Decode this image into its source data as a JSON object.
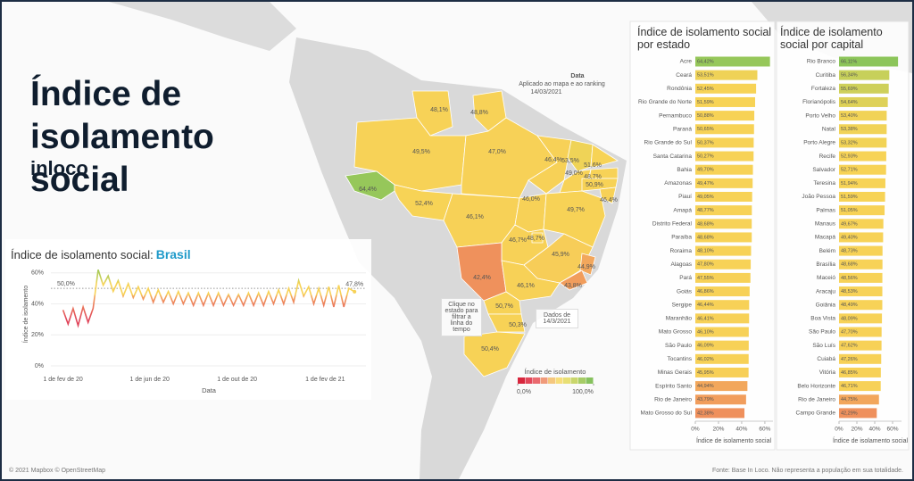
{
  "header": {
    "title": "Índice de isolamento social",
    "subtitle": "inloco"
  },
  "color_scale": {
    "domain": [
      30,
      42,
      45,
      46,
      53,
      56,
      66
    ],
    "colors": [
      "#e0455a",
      "#ef8d5c",
      "#f2a85c",
      "#f7d157",
      "#f7d356",
      "#c9d05a",
      "#8cc55a"
    ]
  },
  "chart_data": [
    {
      "type": "line",
      "title": "Índice de isolamento social:",
      "title_highlight": "Brasil",
      "x": [
        "2020-02-01",
        "2020-02-08",
        "2020-02-15",
        "2020-02-22",
        "2020-02-29",
        "2020-03-07",
        "2020-03-14",
        "2020-03-21",
        "2020-03-28",
        "2020-04-04",
        "2020-04-11",
        "2020-04-18",
        "2020-04-25",
        "2020-05-02",
        "2020-05-09",
        "2020-05-16",
        "2020-05-23",
        "2020-05-30",
        "2020-06-06",
        "2020-06-13",
        "2020-06-20",
        "2020-06-27",
        "2020-07-04",
        "2020-07-11",
        "2020-07-18",
        "2020-07-25",
        "2020-08-01",
        "2020-08-08",
        "2020-08-15",
        "2020-08-22",
        "2020-08-29",
        "2020-09-05",
        "2020-09-12",
        "2020-09-19",
        "2020-09-26",
        "2020-10-03",
        "2020-10-10",
        "2020-10-17",
        "2020-10-24",
        "2020-10-31",
        "2020-11-07",
        "2020-11-14",
        "2020-11-21",
        "2020-11-28",
        "2020-12-05",
        "2020-12-12",
        "2020-12-19",
        "2020-12-26",
        "2021-01-02",
        "2021-01-09",
        "2021-01-16",
        "2021-01-23",
        "2021-01-30",
        "2021-02-06",
        "2021-02-13",
        "2021-02-20",
        "2021-02-27",
        "2021-03-06",
        "2021-03-14"
      ],
      "values": [
        36,
        27,
        37,
        26,
        38,
        28,
        37,
        62,
        52,
        58,
        48,
        55,
        45,
        53,
        44,
        51,
        43,
        50,
        41,
        49,
        41,
        48,
        40,
        48,
        40,
        47,
        39,
        47,
        39,
        47,
        39,
        47,
        39,
        46,
        39,
        46,
        39,
        47,
        39,
        47,
        39,
        48,
        40,
        49,
        40,
        50,
        41,
        55,
        45,
        51,
        40,
        50,
        39,
        51,
        38,
        52,
        38,
        50,
        47.8
      ],
      "value_labels": [
        null,
        null,
        null,
        null,
        null,
        null,
        null,
        null,
        null,
        null,
        null,
        null,
        null,
        null,
        null,
        null,
        null,
        null,
        null,
        null,
        null,
        null,
        null,
        null,
        null,
        null,
        null,
        null,
        null,
        null,
        null,
        null,
        null,
        null,
        null,
        null,
        null,
        null,
        null,
        null,
        null,
        null,
        null,
        null,
        null,
        null,
        null,
        null,
        null,
        null,
        null,
        null,
        null,
        null,
        null,
        null,
        null,
        null,
        "47,8%"
      ],
      "xlim": [
        "2020-01-15",
        "2021-03-20"
      ],
      "xticks": [
        {
          "value": "2020-02-01",
          "label": "1 de fev de 20"
        },
        {
          "value": "2020-06-01",
          "label": "1 de jun de 20"
        },
        {
          "value": "2020-10-01",
          "label": "1 de out de 20"
        },
        {
          "value": "2021-02-01",
          "label": "1 de fev de 21"
        }
      ],
      "ylim": [
        0,
        65
      ],
      "yticks": [
        {
          "value": 0,
          "label": "0%"
        },
        {
          "value": 20,
          "label": "20%"
        },
        {
          "value": 40,
          "label": "40%"
        },
        {
          "value": 60,
          "label": "60%"
        }
      ],
      "grid": true,
      "x_label": "Data",
      "y_label": "Índice de isolamento",
      "reference": {
        "value": 50,
        "label": "50,0%"
      }
    },
    {
      "type": "hbar",
      "title": "Índice de isolamento social por estado",
      "categories": [
        "Acre",
        "Ceará",
        "Rondônia",
        "Rio Grande do Norte",
        "Pernambuco",
        "Paraná",
        "Rio Grande do Sul",
        "Santa Catarina",
        "Bahia",
        "Amazonas",
        "Piauí",
        "Amapá",
        "Distrito Federal",
        "Paraíba",
        "Roraima",
        "Alagoas",
        "Pará",
        "Goiás",
        "Sergipe",
        "Maranhão",
        "Mato Grosso",
        "São Paulo",
        "Tocantins",
        "Minas Gerais",
        "Espírito Santo",
        "Rio de Janeiro",
        "Mato Grosso do Sul"
      ],
      "values": [
        64.42,
        53.51,
        52.45,
        51.59,
        50.88,
        50.65,
        50.37,
        50.27,
        49.7,
        49.47,
        49.05,
        48.77,
        48.68,
        48.68,
        48.1,
        47.8,
        47.55,
        46.86,
        46.44,
        46.41,
        46.1,
        46.09,
        46.02,
        45.95,
        44.94,
        43.79,
        42.38
      ],
      "value_labels": [
        "64,42%",
        "53,51%",
        "52,45%",
        "51,59%",
        "50,88%",
        "50,65%",
        "50,37%",
        "50,27%",
        "49,70%",
        "49,47%",
        "49,05%",
        "48,77%",
        "48,68%",
        "48,68%",
        "48,10%",
        "47,80%",
        "47,55%",
        "46,86%",
        "46,44%",
        "46,41%",
        "46,10%",
        "46,09%",
        "46,02%",
        "45,95%",
        "44,94%",
        "43,79%",
        "42,38%"
      ],
      "xlim": [
        0,
        67
      ],
      "xticks": [
        {
          "value": 0,
          "label": "0%"
        },
        {
          "value": 20,
          "label": "20%"
        },
        {
          "value": 40,
          "label": "40%"
        },
        {
          "value": 60,
          "label": "60%"
        }
      ],
      "x_label": "Índice de isolamento social"
    },
    {
      "type": "hbar",
      "title": "Índice de isolamento social por capital",
      "categories": [
        "Rio Branco",
        "Curitiba",
        "Fortaleza",
        "Florianópolis",
        "Porto Velho",
        "Natal",
        "Porto Alegre",
        "Recife",
        "Salvador",
        "Teresina",
        "João Pessoa",
        "Palmas",
        "Manaus",
        "Macapá",
        "Belém",
        "Brasília",
        "Maceió",
        "Aracaju",
        "Goiânia",
        "Boa Vista",
        "São Paulo",
        "São Luís",
        "Cuiabá",
        "Vitória",
        "Belo Horizonte",
        "Rio de Janeiro",
        "Campo Grande"
      ],
      "values": [
        66.11,
        56.34,
        55.69,
        54.64,
        53.4,
        53.38,
        53.32,
        52.93,
        52.71,
        51.94,
        51.59,
        51.05,
        49.67,
        49.4,
        48.73,
        48.68,
        48.56,
        48.53,
        48.49,
        48.09,
        47.7,
        47.62,
        47.26,
        46.85,
        46.71,
        44.75,
        42.29
      ],
      "value_labels": [
        "66,11%",
        "56,34%",
        "55,69%",
        "54,64%",
        "53,40%",
        "53,38%",
        "53,32%",
        "52,93%",
        "52,71%",
        "51,94%",
        "51,59%",
        "51,05%",
        "49,67%",
        "49,40%",
        "48,73%",
        "48,68%",
        "48,56%",
        "48,53%",
        "48,49%",
        "48,09%",
        "47,70%",
        "47,62%",
        "47,26%",
        "46,85%",
        "46,71%",
        "44,75%",
        "42,29%"
      ],
      "xlim": [
        0,
        70
      ],
      "xticks": [
        {
          "value": 0,
          "label": "0%"
        },
        {
          "value": 20,
          "label": "20%"
        },
        {
          "value": 40,
          "label": "40%"
        },
        {
          "value": 60,
          "label": "60%"
        }
      ],
      "x_label": "Índice de isolamento social"
    },
    {
      "type": "map",
      "values": [
        48.1,
        48.8,
        49.5,
        47.0,
        46.4,
        53.5,
        51.6,
        49.0,
        48.7,
        50.9,
        46.4,
        64.4,
        52.4,
        46.1,
        46.0,
        49.7,
        46.7,
        48.7,
        45.9,
        44.9,
        42.4,
        46.1,
        43.8,
        50.7,
        50.3,
        50.4
      ],
      "value_labels": [
        "48,1%",
        "48,8%",
        "49,5%",
        "47,0%",
        "46,4%",
        "53,5%",
        "51,6%",
        "49,0%",
        "48,7%",
        "50,9%",
        "46,4%",
        "64,4%",
        "52,4%",
        "46,1%",
        "46,0%",
        "49,7%",
        "46,7%",
        "48,7%",
        "45,9%",
        "44,9%",
        "42,4%",
        "46,1%",
        "43,8%",
        "50,7%",
        "50,3%",
        "50,4%"
      ],
      "legend": {
        "title": "Índice de isolamento",
        "min": {
          "value": 0,
          "label": "0,0%"
        },
        "max": {
          "value": 100,
          "label": "100,0%"
        },
        "colors": [
          "#d7263d",
          "#e2475a",
          "#ea6a6f",
          "#f09a7a",
          "#f5c77e",
          "#f7dd7a",
          "#e8df74",
          "#c9d66c",
          "#a6cc66",
          "#86c15e"
        ]
      }
    }
  ],
  "annotations": {
    "date_title": "Data",
    "date_note": "Aplicado ao mapa e ao ranking",
    "date_value": "14/03/2021",
    "click_hint": "Clique no estado para filtrar a linha do tempo",
    "data_date": "Dados de 14/3/2021"
  },
  "footer": {
    "attribution": "© 2021 Mapbox © OpenStreetMap",
    "source": "Fonte: Base In Loco. Não representa a população em sua totalidade."
  }
}
